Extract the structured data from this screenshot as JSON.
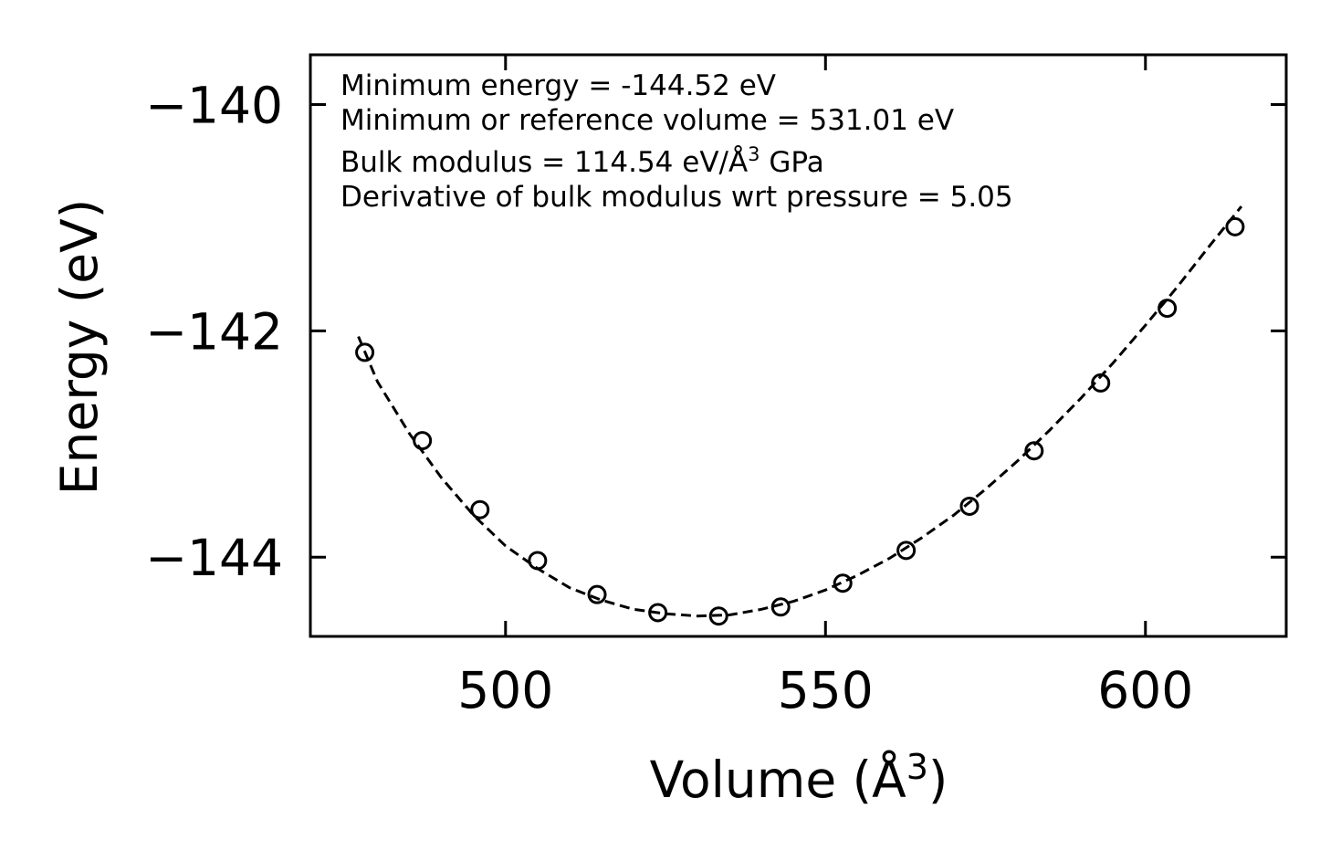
{
  "chart_data": {
    "type": "scatter",
    "title": "",
    "xlabel": "Volume (Å",
    "xlabel_sup": "3",
    "xlabel_tail": ")",
    "ylabel": "Energy (eV)",
    "xlim": [
      469.5,
      622
    ],
    "ylim": [
      -144.7,
      -139.56
    ],
    "xticks": [
      500,
      550,
      600
    ],
    "xtick_labels": [
      "500",
      "550",
      "600"
    ],
    "yticks": [
      -140,
      -142,
      -144
    ],
    "ytick_labels": [
      "−140",
      "−142",
      "−144"
    ],
    "series": [
      {
        "name": "data",
        "marker": "open-circle",
        "x": [
          478.0,
          487.0,
          496.0,
          505.0,
          514.3,
          523.8,
          533.3,
          543.0,
          552.7,
          562.6,
          572.5,
          582.6,
          593.0,
          603.4,
          614.0
        ],
        "y": [
          -142.19,
          -142.97,
          -143.58,
          -144.03,
          -144.33,
          -144.49,
          -144.52,
          -144.44,
          -144.23,
          -143.94,
          -143.55,
          -143.06,
          -142.46,
          -141.8,
          -141.08
        ]
      },
      {
        "name": "fit",
        "style": "dashed",
        "x": [
          477,
          480,
          485,
          490,
          495,
          500,
          505,
          510,
          515,
          520,
          525,
          530,
          535,
          540,
          545,
          550,
          555,
          560,
          565,
          570,
          575,
          580,
          585,
          590,
          595,
          600,
          605,
          610,
          615
        ],
        "y": [
          -142.05,
          -142.45,
          -142.91,
          -143.3,
          -143.63,
          -143.9,
          -144.1,
          -144.27,
          -144.38,
          -144.46,
          -144.5,
          -144.52,
          -144.51,
          -144.46,
          -144.39,
          -144.29,
          -144.16,
          -144.01,
          -143.83,
          -143.63,
          -143.4,
          -143.15,
          -142.88,
          -142.59,
          -142.28,
          -141.95,
          -141.61,
          -141.25,
          -140.9
        ]
      }
    ],
    "annotations": {
      "line1": "Minimum energy = -144.52 eV",
      "line2": "Minimum or reference volume = 531.01 eV",
      "line3_pre": "Bulk modulus = 114.54 eV/Å",
      "line3_sup": "3",
      "line3_post": " GPa",
      "line4": "Derivative of bulk modulus wrt pressure = 5.05"
    },
    "grid": false,
    "legend": "none"
  }
}
